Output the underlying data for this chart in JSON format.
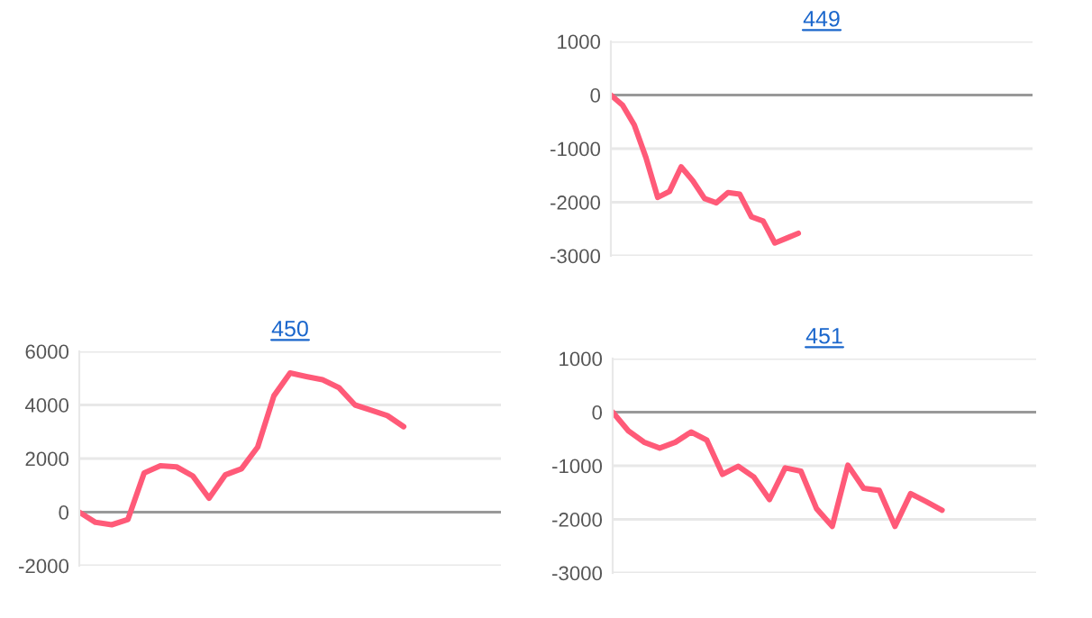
{
  "chart_data": [
    {
      "type": "line",
      "title": "449",
      "categories": [
        null,
        null,
        null,
        null,
        null,
        null,
        null,
        null,
        null,
        null,
        null,
        null,
        null,
        null,
        null,
        null,
        null,
        null,
        null,
        null,
        null,
        null,
        null,
        null,
        null,
        null,
        null,
        null,
        null,
        null,
        null,
        null,
        null,
        null,
        null,
        null,
        null
      ],
      "series": [
        {
          "color": "#ff5a78",
          "values": [
            0,
            -190,
            -560,
            -1170,
            -1910,
            -1800,
            -1340,
            -1600,
            -1930,
            -2010,
            -1820,
            -1850,
            -2270,
            -2350,
            -2760,
            -2670,
            -2580,
            null,
            null,
            null,
            null,
            null,
            null,
            null,
            null,
            null,
            null,
            null,
            null,
            null,
            null,
            null,
            null,
            null,
            null,
            null,
            null
          ]
        }
      ],
      "ylim": [
        -3000,
        1000
      ],
      "yticks": [
        -3000,
        -2000,
        -1000,
        0,
        1000
      ],
      "grid": "y",
      "tick_labels": "y"
    },
    {
      "type": "line",
      "title": "450",
      "categories": [
        null,
        null,
        null,
        null,
        null,
        null,
        null,
        null,
        null,
        null,
        null,
        null,
        null,
        null,
        null,
        null,
        null,
        null,
        null,
        null,
        null,
        null,
        null,
        null,
        null,
        null,
        null
      ],
      "series": [
        {
          "color": "#ff5a78",
          "values": [
            0,
            -380,
            -470,
            -270,
            1460,
            1730,
            1690,
            1350,
            520,
            1390,
            1620,
            2430,
            4340,
            5190,
            5060,
            4940,
            4650,
            4000,
            3800,
            3600,
            3190,
            null,
            null,
            null,
            null,
            null,
            null
          ]
        }
      ],
      "ylim": [
        -2000,
        6000
      ],
      "yticks": [
        -2000,
        0,
        2000,
        4000,
        6000
      ],
      "grid": "y",
      "tick_labels": "y"
    },
    {
      "type": "line",
      "title": "451",
      "categories": [
        null,
        null,
        null,
        null,
        null,
        null,
        null,
        null,
        null,
        null,
        null,
        null,
        null,
        null,
        null,
        null,
        null,
        null,
        null,
        null,
        null,
        null,
        null,
        null,
        null,
        null,
        null,
        null
      ],
      "series": [
        {
          "color": "#ff5a78",
          "values": [
            0,
            -350,
            -560,
            -670,
            -560,
            -370,
            -520,
            -1160,
            -1010,
            -1210,
            -1630,
            -1040,
            -1100,
            -1800,
            -2130,
            -990,
            -1420,
            -1460,
            -2130,
            -1520,
            -1670,
            -1830,
            null,
            null,
            null,
            null,
            null,
            null
          ]
        }
      ],
      "ylim": [
        -3000,
        1000
      ],
      "yticks": [
        -3000,
        -2000,
        -1000,
        0,
        1000
      ],
      "grid": "y",
      "tick_labels": "y"
    }
  ]
}
